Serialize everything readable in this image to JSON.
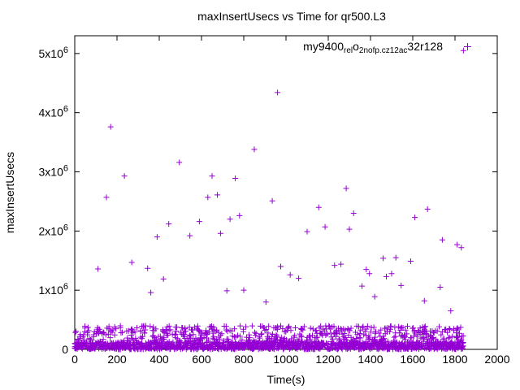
{
  "chart_data": {
    "type": "scatter",
    "title": "maxInsertUsecs vs Time for qr500.L3",
    "xlabel": "Time(s)",
    "ylabel": "maxInsertUsecs",
    "xlim": [
      0,
      2000
    ],
    "ylim": [
      0,
      5300000
    ],
    "x_ticks": [
      0,
      200,
      400,
      600,
      800,
      1000,
      1200,
      1400,
      1600,
      1800,
      2000
    ],
    "y_ticks": [
      {
        "value": 0,
        "mantissa": "0",
        "exp": ""
      },
      {
        "value": 1000000,
        "mantissa": "1x10",
        "exp": "6"
      },
      {
        "value": 2000000,
        "mantissa": "2x10",
        "exp": "6"
      },
      {
        "value": 3000000,
        "mantissa": "3x10",
        "exp": "6"
      },
      {
        "value": 4000000,
        "mantissa": "4x10",
        "exp": "6"
      },
      {
        "value": 5000000,
        "mantissa": "5x10",
        "exp": "6"
      }
    ],
    "grid": false,
    "legend": {
      "placement": "top-right",
      "parts": [
        {
          "text": "my9400",
          "sub": false
        },
        {
          "text": "rel",
          "sub": true
        },
        {
          "text": "o",
          "sub": false
        },
        {
          "text": "2nofp.cz12a",
          "sub": true
        },
        {
          "text": "c",
          "sub": true
        },
        {
          "text": "32r128",
          "sub": false
        }
      ]
    },
    "color": "#9400d3",
    "marker": "+",
    "series": [
      {
        "name": "my9400_rel_o2nofp.cz12a_c32r128",
        "note": "Visible outliers; the dense band of points between 0 and about 400000 across x = 0..1840 is listed in band",
        "points": [
          [
            110,
            1360000
          ],
          [
            150,
            2570000
          ],
          [
            170,
            3760000
          ],
          [
            235,
            2930000
          ],
          [
            270,
            1470000
          ],
          [
            345,
            1370000
          ],
          [
            360,
            960000
          ],
          [
            390,
            1900000
          ],
          [
            420,
            1190000
          ],
          [
            445,
            2120000
          ],
          [
            495,
            3160000
          ],
          [
            545,
            1920000
          ],
          [
            590,
            2160000
          ],
          [
            630,
            2570000
          ],
          [
            650,
            2930000
          ],
          [
            675,
            2610000
          ],
          [
            690,
            1960000
          ],
          [
            720,
            990000
          ],
          [
            735,
            2200000
          ],
          [
            760,
            2890000
          ],
          [
            780,
            2260000
          ],
          [
            800,
            1000000
          ],
          [
            850,
            3380000
          ],
          [
            905,
            800000
          ],
          [
            935,
            2510000
          ],
          [
            960,
            4340000
          ],
          [
            975,
            1400000
          ],
          [
            1020,
            1260000
          ],
          [
            1060,
            1200000
          ],
          [
            1100,
            1990000
          ],
          [
            1155,
            2400000
          ],
          [
            1185,
            2070000
          ],
          [
            1230,
            1420000
          ],
          [
            1260,
            1440000
          ],
          [
            1285,
            2720000
          ],
          [
            1300,
            2030000
          ],
          [
            1320,
            2300000
          ],
          [
            1360,
            1070000
          ],
          [
            1380,
            1350000
          ],
          [
            1395,
            1280000
          ],
          [
            1420,
            890000
          ],
          [
            1460,
            1540000
          ],
          [
            1475,
            1230000
          ],
          [
            1500,
            1280000
          ],
          [
            1520,
            1550000
          ],
          [
            1545,
            1080000
          ],
          [
            1590,
            1490000
          ],
          [
            1610,
            2230000
          ],
          [
            1655,
            820000
          ],
          [
            1670,
            2370000
          ],
          [
            1730,
            1050000
          ],
          [
            1740,
            1850000
          ],
          [
            1780,
            650000
          ],
          [
            1810,
            1770000
          ],
          [
            1830,
            1720000
          ],
          [
            1840,
            5050000
          ]
        ],
        "band": {
          "x_range": [
            0,
            1840
          ],
          "y_range": [
            0,
            400000
          ],
          "step": 3
        }
      }
    ]
  }
}
